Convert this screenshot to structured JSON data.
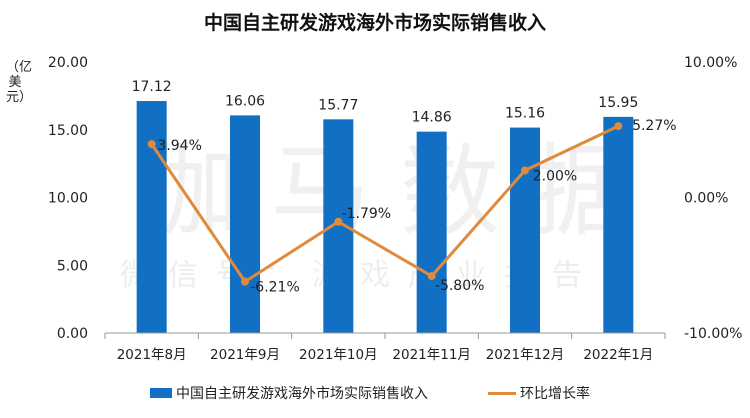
{
  "chart_data": {
    "type": "bar+line",
    "title": "中国自主研发游戏海外市场实际销售收入",
    "ylabel": "（亿美元）",
    "categories": [
      "2021年8月",
      "2021年9月",
      "2021年10月",
      "2021年11月",
      "2021年12月",
      "2022年1月"
    ],
    "series": [
      {
        "name": "中国自主研发游戏海外市场实际销售收入",
        "type": "bar",
        "axis": "left",
        "values": [
          17.12,
          16.06,
          15.77,
          14.86,
          15.16,
          15.95
        ],
        "labels": [
          "17.12",
          "16.06",
          "15.77",
          "14.86",
          "15.16",
          "15.95"
        ],
        "color": "#1170c4"
      },
      {
        "name": "环比增长率",
        "type": "line",
        "axis": "right",
        "values": [
          3.94,
          -6.21,
          -1.79,
          -5.8,
          2.0,
          5.27
        ],
        "labels": [
          "3.94%",
          "-6.21%",
          "-1.79%",
          "-5.80%",
          "2.00%",
          "5.27%"
        ],
        "color": "#e08a3c"
      }
    ],
    "left_axis": {
      "ylim": [
        0,
        20
      ],
      "ticks": [
        "0.00",
        "5.00",
        "10.00",
        "15.00",
        "20.00"
      ]
    },
    "right_axis": {
      "ylim": [
        -10,
        10
      ],
      "ticks": [
        "-10.00%",
        "0.00%",
        "10.00%"
      ]
    },
    "grid": false,
    "legend": "bottom"
  },
  "watermark": {
    "main": "伽马数据",
    "sub": "微信号：游戏产业报告"
  }
}
